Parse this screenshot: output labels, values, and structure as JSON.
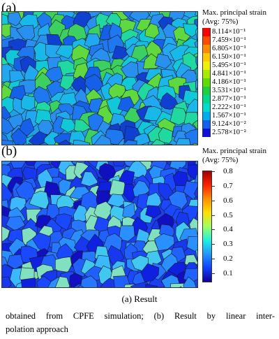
{
  "panel_a": {
    "label": "(a)",
    "legend_title_1": "Max. principal strain",
    "legend_title_2": "(Avg: 75%)",
    "legend": [
      {
        "value": "8.114×10⁻¹",
        "color": "#ff0000"
      },
      {
        "value": "7.459×10⁻¹",
        "color": "#ff4a00"
      },
      {
        "value": "6.805×10⁻¹",
        "color": "#ff8c00"
      },
      {
        "value": "6.150×10⁻¹",
        "color": "#ffc800"
      },
      {
        "value": "5.495×10⁻¹",
        "color": "#ecf200"
      },
      {
        "value": "4.841×10⁻¹",
        "color": "#a8ea00"
      },
      {
        "value": "4.186×10⁻¹",
        "color": "#5fdc00"
      },
      {
        "value": "3.531×10⁻¹",
        "color": "#1ed040"
      },
      {
        "value": "2.877×10⁻¹",
        "color": "#00d890"
      },
      {
        "value": "2.222×10⁻¹",
        "color": "#00dccc"
      },
      {
        "value": "1.567×10⁻¹",
        "color": "#00aef0"
      },
      {
        "value": "9.124×10⁻²",
        "color": "#1460f0"
      },
      {
        "value": "2.578×10⁻²",
        "color": "#1010d8"
      }
    ]
  },
  "panel_b": {
    "label": "(b)",
    "legend_title_1": "Max. principal strain",
    "legend_title_2": "(Avg: 75%)",
    "ticks": [
      "0.8",
      "0.7",
      "0.6",
      "0.5",
      "0.4",
      "0.3",
      "0.2",
      "0.1"
    ],
    "colormap": [
      "#a00000",
      "#ff2000",
      "#ff9000",
      "#ffe000",
      "#a0ff60",
      "#20f0e0",
      "#2098ff",
      "#1040ff",
      "#10009a"
    ]
  },
  "caption": "(a)  Result",
  "paragraph_line_1": "obtained from CPFE simulation; (b) Result by linear inter-",
  "paragraph_line_2": "polation approach"
}
